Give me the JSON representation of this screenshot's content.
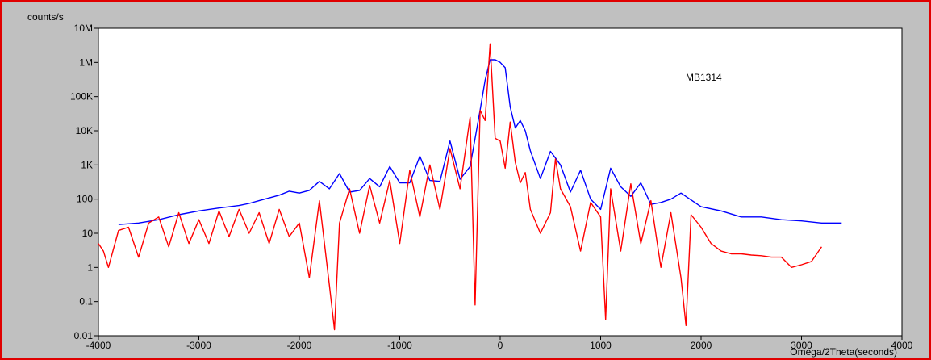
{
  "chart_data": {
    "type": "line",
    "ylabel": "counts/s",
    "xlabel": "Omega/2Theta(seconds)",
    "annotation": "MB1314",
    "xlim": [
      -4000,
      4000
    ],
    "ylim": [
      0.01,
      10000000
    ],
    "y_scale": "log",
    "grid": false,
    "x_ticks": [
      -4000,
      -3000,
      -2000,
      -1000,
      0,
      1000,
      2000,
      3000,
      4000
    ],
    "x_tick_labels": [
      "-4000",
      "-3000",
      "-2000",
      "-1000",
      "0",
      "1000",
      "2000",
      "3000",
      "4000"
    ],
    "y_ticks": [
      0.01,
      0.1,
      1,
      10,
      100,
      1000,
      10000,
      100000,
      1000000,
      10000000
    ],
    "y_tick_labels": [
      "0.01",
      "0.1",
      "1",
      "10",
      "100",
      "1K",
      "10K",
      "100K",
      "1M",
      "10M"
    ],
    "series": [
      {
        "color": "#0000ff",
        "x": [
          -3800,
          -3600,
          -3400,
          -3200,
          -3000,
          -2800,
          -2600,
          -2500,
          -2400,
          -2200,
          -2100,
          -2000,
          -1900,
          -1800,
          -1700,
          -1600,
          -1500,
          -1400,
          -1300,
          -1200,
          -1100,
          -1000,
          -900,
          -800,
          -700,
          -600,
          -500,
          -400,
          -300,
          -200,
          -150,
          -100,
          -50,
          0,
          50,
          100,
          150,
          200,
          250,
          300,
          400,
          500,
          550,
          600,
          700,
          800,
          900,
          1000,
          1100,
          1200,
          1300,
          1400,
          1500,
          1600,
          1700,
          1800,
          2000,
          2200,
          2400,
          2600,
          2800,
          3000,
          3200,
          3300,
          3400
        ],
        "y": [
          18,
          20,
          25,
          35,
          45,
          55,
          65,
          75,
          90,
          130,
          170,
          150,
          180,
          330,
          200,
          560,
          160,
          180,
          400,
          230,
          900,
          300,
          300,
          1800,
          350,
          330,
          5000,
          380,
          900,
          40000,
          300000,
          1200000,
          1200000,
          1000000,
          700000,
          50000,
          12000,
          20000,
          10000,
          2600,
          400,
          2500,
          1600,
          1000,
          160,
          700,
          100,
          50,
          800,
          230,
          120,
          300,
          70,
          80,
          100,
          150,
          60,
          45,
          30,
          30,
          25,
          23,
          20,
          20,
          20
        ]
      },
      {
        "color": "#ff0000",
        "x": [
          -4000,
          -3950,
          -3900,
          -3800,
          -3700,
          -3600,
          -3500,
          -3400,
          -3300,
          -3200,
          -3100,
          -3000,
          -2900,
          -2800,
          -2700,
          -2600,
          -2500,
          -2400,
          -2300,
          -2200,
          -2100,
          -2000,
          -1900,
          -1800,
          -1700,
          -1650,
          -1600,
          -1500,
          -1400,
          -1300,
          -1200,
          -1100,
          -1000,
          -900,
          -800,
          -700,
          -600,
          -500,
          -400,
          -300,
          -250,
          -200,
          -150,
          -100,
          -50,
          0,
          50,
          100,
          150,
          200,
          250,
          300,
          400,
          500,
          550,
          600,
          700,
          800,
          900,
          1000,
          1050,
          1100,
          1200,
          1300,
          1400,
          1500,
          1600,
          1700,
          1800,
          1850,
          1900,
          2000,
          2100,
          2200,
          2300,
          2400,
          2500,
          2600,
          2700,
          2800,
          2900,
          3000,
          3100,
          3200
        ],
        "y": [
          5,
          3,
          1,
          12,
          15,
          2,
          20,
          30,
          4,
          40,
          5,
          25,
          5,
          45,
          8,
          50,
          10,
          40,
          5,
          50,
          8,
          20,
          0.5,
          90,
          0.3,
          0.015,
          20,
          200,
          10,
          250,
          20,
          350,
          5,
          700,
          30,
          1000,
          50,
          3000,
          200,
          25000,
          0.08,
          40000,
          20000,
          3500000,
          6000,
          5000,
          800,
          18000,
          1200,
          300,
          600,
          50,
          10,
          40,
          1500,
          200,
          60,
          3,
          80,
          30,
          0.03,
          200,
          3,
          280,
          5,
          90,
          1,
          40,
          0.5,
          0.02,
          35,
          15,
          5,
          3,
          2.5,
          2.5,
          2.3,
          2.2,
          2.0,
          2.0,
          1.0,
          1.2,
          1.5,
          4
        ]
      }
    ]
  }
}
